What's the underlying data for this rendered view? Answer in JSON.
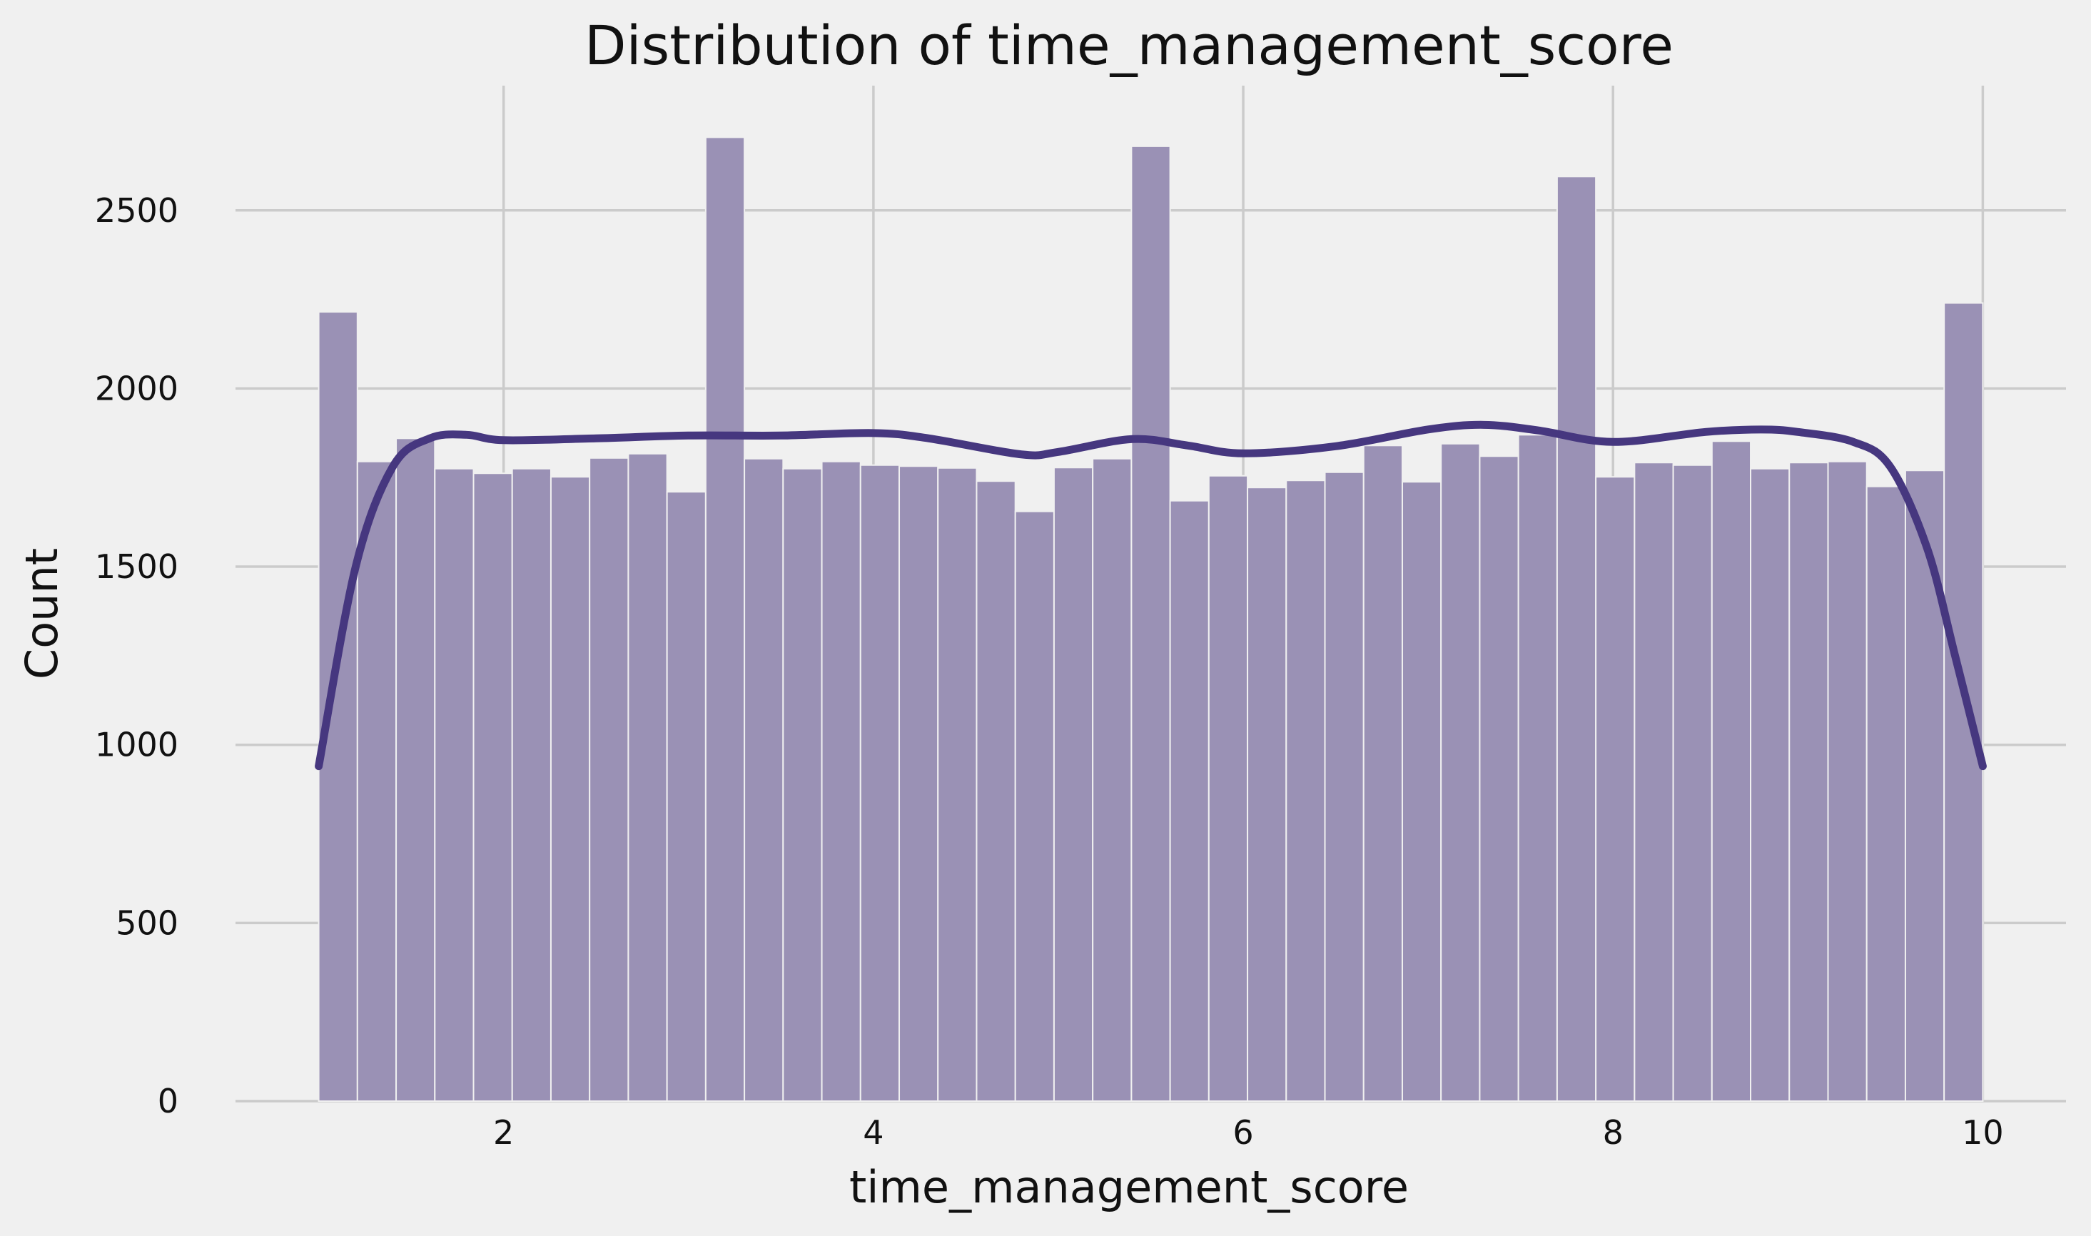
{
  "chart_data": {
    "type": "bar",
    "title": "Distribution of time_management_score",
    "xlabel": "time_management_score",
    "ylabel": "Count",
    "xlim": [
      0.55,
      10.45
    ],
    "ylim": [
      0,
      2850
    ],
    "xticks": [
      2,
      4,
      6,
      8,
      10
    ],
    "xtick_labels": [
      "2",
      "4",
      "6",
      "8",
      "10"
    ],
    "yticks": [
      0,
      500,
      1000,
      1500,
      2000,
      2500
    ],
    "ytick_labels": [
      "0",
      "500",
      "1000",
      "1500",
      "2000",
      "2500"
    ],
    "grid": true,
    "legend": "none",
    "bin_range": [
      1,
      10
    ],
    "bin_count": 43,
    "values": [
      2215,
      1795,
      1860,
      1775,
      1762,
      1775,
      1752,
      1805,
      1817,
      1710,
      2705,
      1803,
      1775,
      1795,
      1785,
      1782,
      1777,
      1740,
      1655,
      1778,
      1803,
      2680,
      1685,
      1755,
      1722,
      1742,
      1765,
      1840,
      1738,
      1845,
      1810,
      1870,
      2595,
      1752,
      1792,
      1785,
      1852,
      1775,
      1792,
      1795,
      1725,
      1770,
      2240
    ],
    "kde": {
      "x": [
        1.0,
        1.2,
        1.4,
        1.6,
        1.8,
        2.0,
        2.5,
        3.0,
        3.5,
        4.0,
        4.3,
        4.8,
        5.0,
        5.4,
        5.7,
        6.0,
        6.5,
        7.0,
        7.3,
        7.6,
        8.0,
        8.5,
        8.8,
        9.0,
        9.3,
        9.5,
        9.7,
        9.85,
        10.0
      ],
      "y": [
        940,
        1500,
        1780,
        1860,
        1870,
        1855,
        1860,
        1868,
        1868,
        1875,
        1860,
        1815,
        1822,
        1858,
        1840,
        1818,
        1838,
        1885,
        1898,
        1882,
        1850,
        1878,
        1885,
        1878,
        1850,
        1780,
        1550,
        1250,
        940
      ]
    },
    "colors": {
      "bar_fill": "#9a91b5",
      "kde_line": "#46377f",
      "background": "#f0f0f0",
      "grid": "#cbcbcb"
    }
  }
}
